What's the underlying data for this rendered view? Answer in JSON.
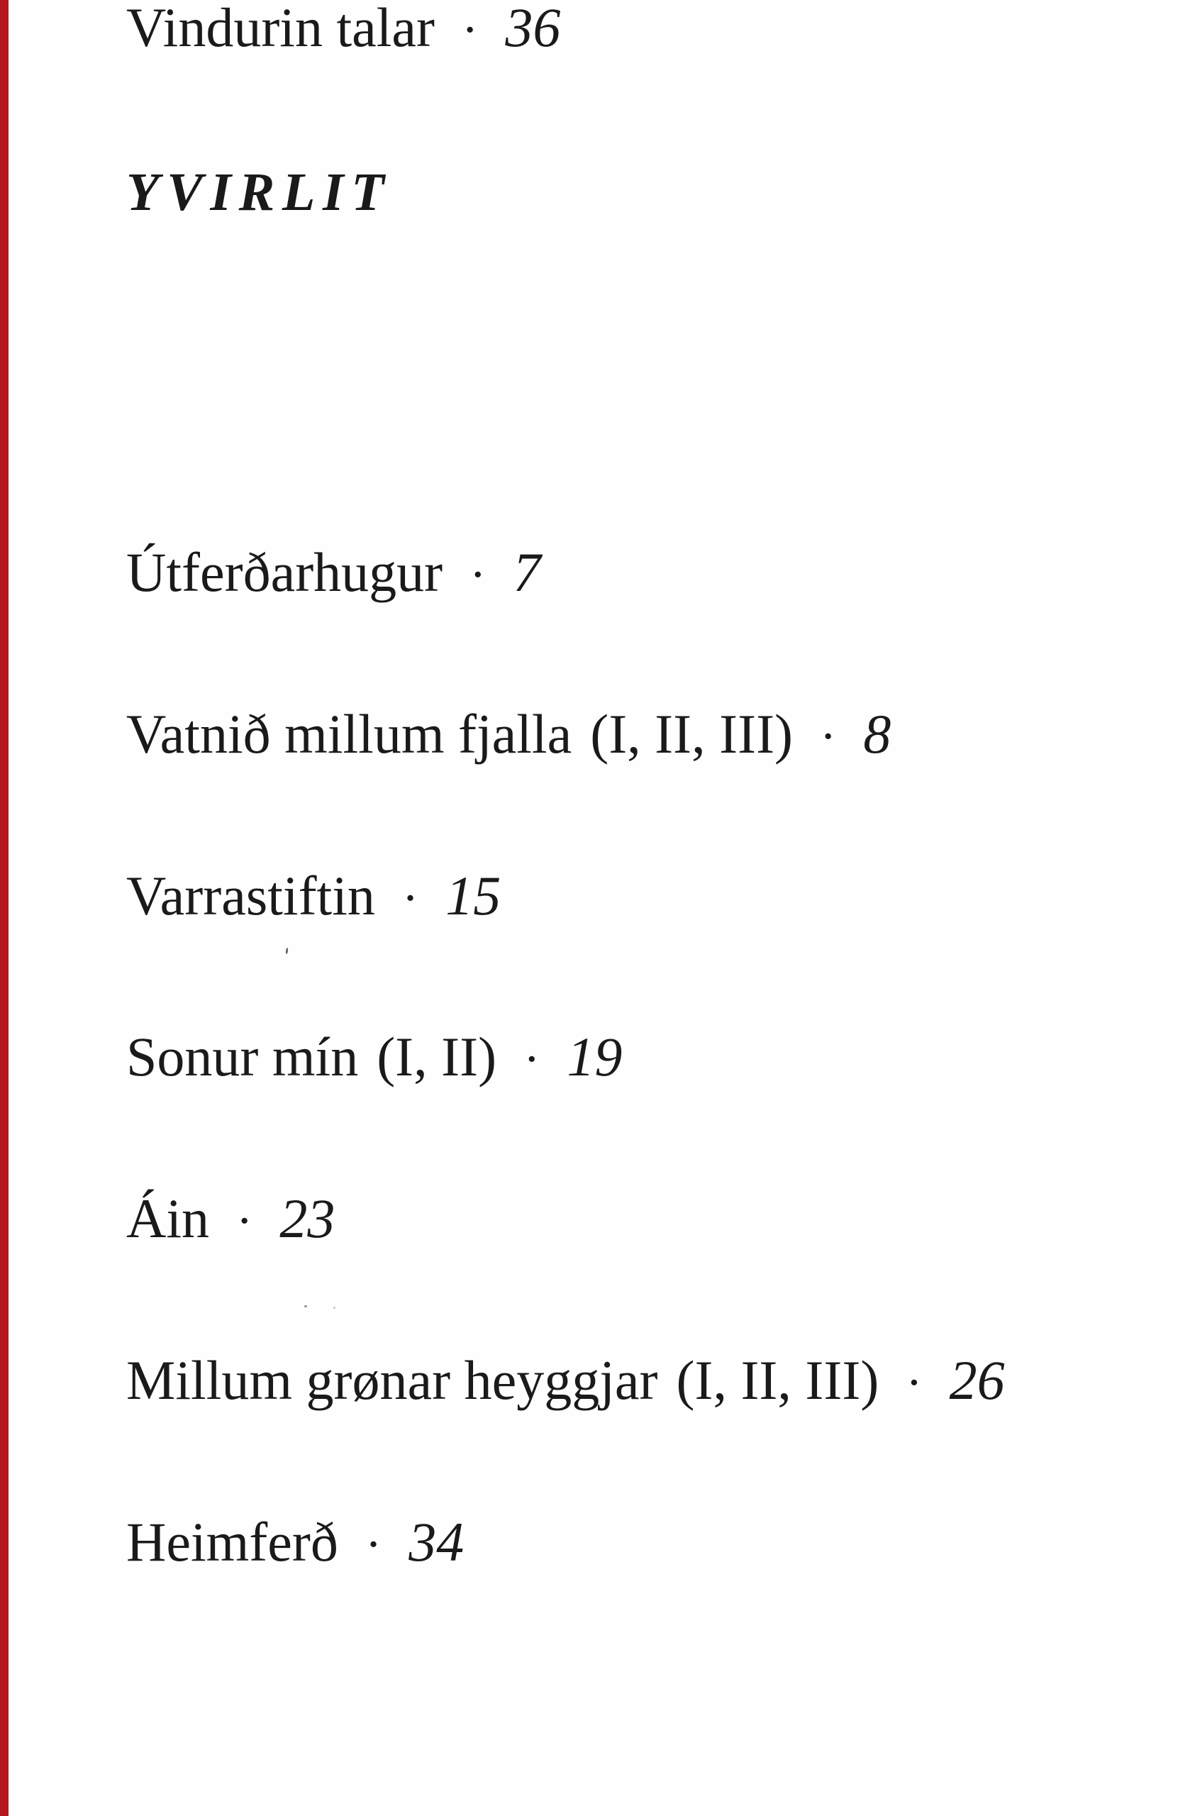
{
  "page": {
    "title": "YVIRLIT",
    "separator": "·",
    "entries": [
      {
        "title": "Útferðarhugur",
        "parts": "",
        "page": "7"
      },
      {
        "title": "Vatnið millum fjalla",
        "parts": "(I, II, III)",
        "page": "8"
      },
      {
        "title": "Varrastiftin",
        "parts": "",
        "page": "15"
      },
      {
        "title": "Sonur mín",
        "parts": "(I, II)",
        "page": "19"
      },
      {
        "title": "Áin",
        "parts": "",
        "page": "23"
      },
      {
        "title": "Millum grønar heyggjar",
        "parts": "(I, II, III)",
        "page": "26"
      },
      {
        "title": "Heimferð",
        "parts": "",
        "page": "34"
      },
      {
        "title": "Vindurin talar",
        "parts": "",
        "page": "36"
      }
    ],
    "colors": {
      "text": "#1a1a1a",
      "background": "#fefefe",
      "edge_strip": "#b2181d"
    }
  }
}
